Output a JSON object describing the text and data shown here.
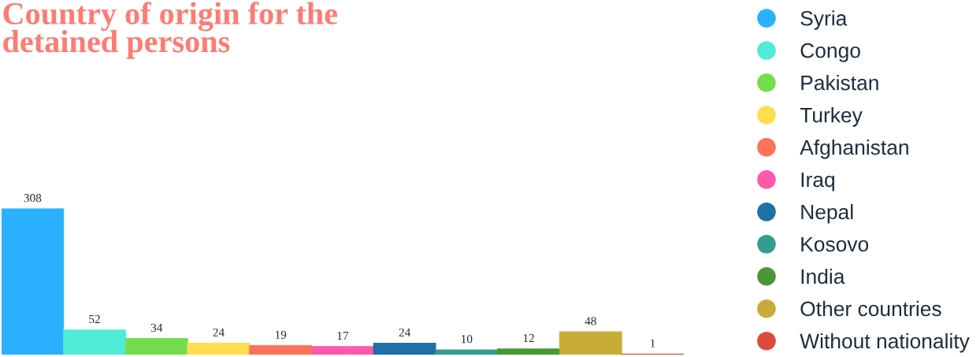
{
  "chart_data": {
    "type": "bar",
    "title": "Country of origin for the\ndetained persons",
    "categories": [
      null
    ],
    "series": [
      {
        "name": "Syria",
        "color": "#29b0ff",
        "values": [
          308
        ]
      },
      {
        "name": "Congo",
        "color": "#50ecd8",
        "values": [
          52
        ]
      },
      {
        "name": "Pakistan",
        "color": "#74dd4c",
        "values": [
          34
        ]
      },
      {
        "name": "Turkey",
        "color": "#ffdd50",
        "values": [
          24
        ]
      },
      {
        "name": "Afghanistan",
        "color": "#ff735a",
        "values": [
          19
        ]
      },
      {
        "name": "Iraq",
        "color": "#ff5aaa",
        "values": [
          17
        ]
      },
      {
        "name": "Nepal",
        "color": "#1e70a6",
        "values": [
          24
        ]
      },
      {
        "name": "Kosovo",
        "color": "#339e90",
        "values": [
          10
        ]
      },
      {
        "name": "India",
        "color": "#4d9637",
        "values": [
          12
        ]
      },
      {
        "name": "Other countries",
        "color": "#c8ab37",
        "values": [
          48
        ]
      },
      {
        "name": "Without nationality",
        "color": "#dd4b3a",
        "values": [
          1
        ]
      }
    ],
    "data_labels": true,
    "legend": "top right",
    "grid": false,
    "tick_labels": false
  }
}
